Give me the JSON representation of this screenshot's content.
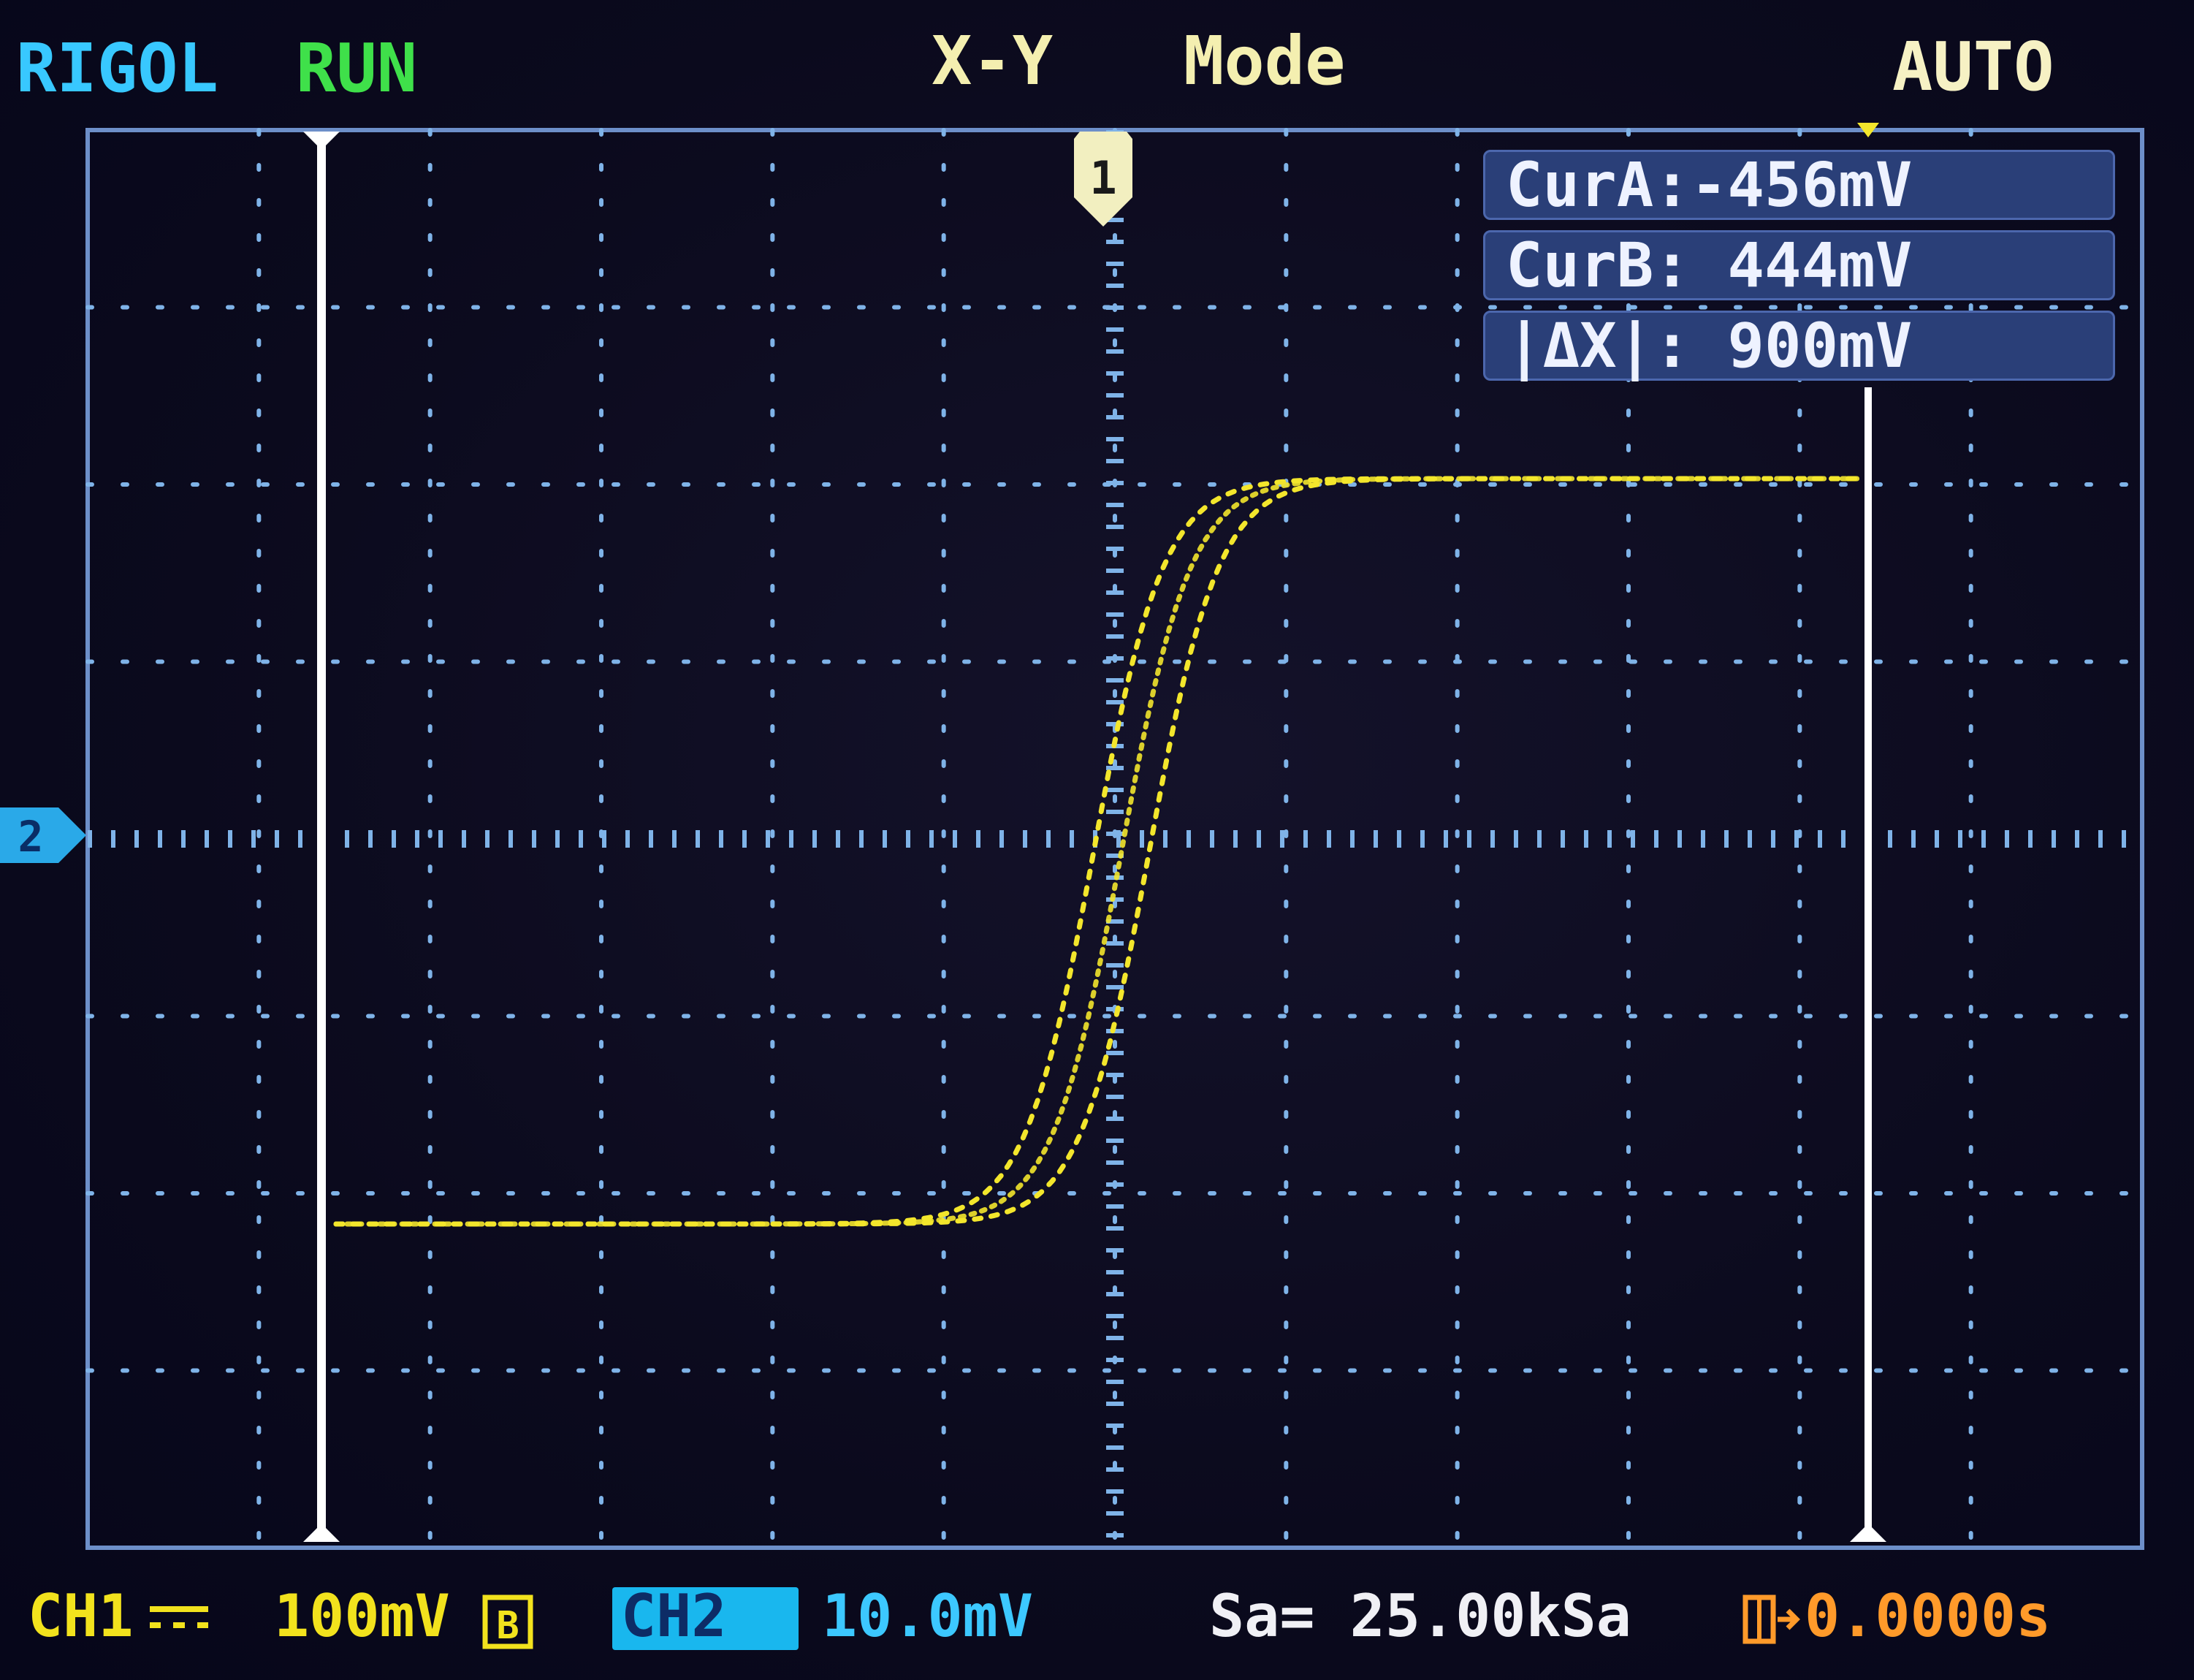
{
  "header": {
    "brand": "RIGOL",
    "run_state": "RUN",
    "mode_xy": "X-Y",
    "mode_label": "Mode",
    "trigger_mode": "AUTO"
  },
  "markers": {
    "ch1_label": "1",
    "ch2_label": "2"
  },
  "measurements": {
    "cur_a": "CurA:-456mV",
    "cur_b": "CurB: 444mV",
    "delta_x": "|ΔX|: 900mV"
  },
  "footer": {
    "ch1_label": "CH1",
    "ch1_scale": "100mV",
    "ch2_label": "CH2",
    "ch2_scale": "10.0mV",
    "sample_rate": "Sa= 25.00kSa",
    "time_offset": "0.0000s"
  },
  "colors": {
    "trace": "#f3e62c",
    "grid_dot": "#7fb3e8",
    "cursor": "#ffffff",
    "ch1": "#f2e21d",
    "ch2": "#19b7ee",
    "frame": "#6d8fc9"
  }
}
